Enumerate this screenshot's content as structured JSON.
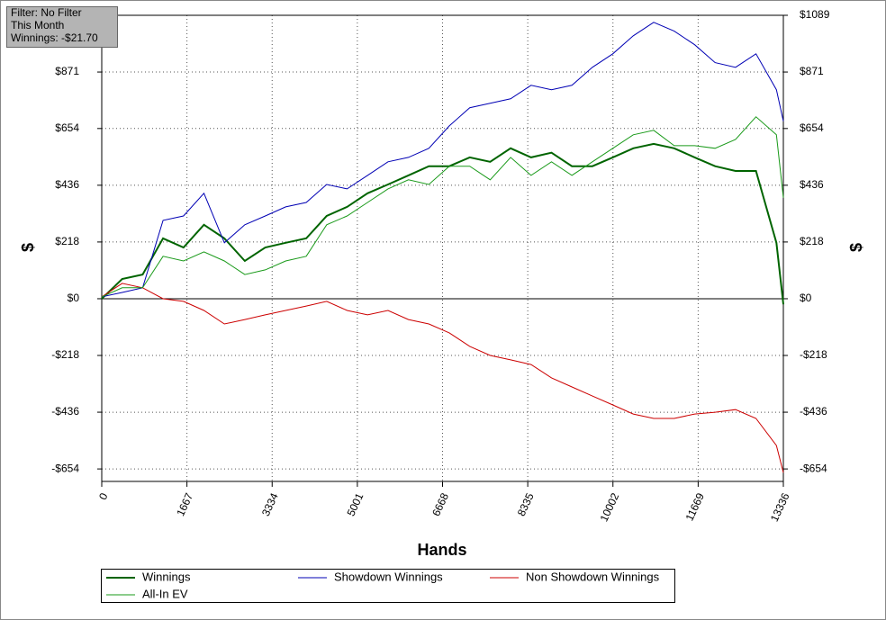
{
  "chart_data": {
    "type": "line",
    "annotations": [
      "Filter: No Filter",
      "This Month",
      "Winnings: -$21.70"
    ],
    "x_label": "Hands",
    "y_label": "$",
    "y2_label": "$",
    "x": [
      0,
      400,
      800,
      1200,
      1600,
      2000,
      2400,
      2800,
      3200,
      3600,
      4000,
      4400,
      4800,
      5200,
      5600,
      6000,
      6400,
      6800,
      7200,
      7600,
      8000,
      8400,
      8800,
      9200,
      9600,
      10000,
      10400,
      10800,
      11200,
      11600,
      12000,
      12400,
      12800,
      13200,
      13336
    ],
    "series": [
      {
        "name": "Winnings",
        "color": "#006400",
        "width": 2,
        "values": [
          0,
          76,
          93,
          232,
          197,
          284,
          232,
          145,
          197,
          215,
          232,
          318,
          353,
          405,
          439,
          474,
          509,
          509,
          543,
          526,
          578,
          543,
          561,
          509,
          509,
          543,
          578,
          595,
          578,
          543,
          509,
          491,
          491,
          215,
          -21.7
        ]
      },
      {
        "name": "Showdown Winnings",
        "color": "#0000b4",
        "width": 1,
        "values": [
          7,
          24,
          42,
          301,
          318,
          405,
          215,
          284,
          318,
          353,
          370,
          439,
          422,
          474,
          526,
          543,
          578,
          664,
          734,
          751,
          768,
          820,
          803,
          820,
          889,
          941,
          1010,
          1062,
          1028,
          976,
          907,
          889,
          941,
          803,
          682
        ]
      },
      {
        "name": "Non Showdown Winnings",
        "color": "#cc0000",
        "width": 1,
        "values": [
          7,
          59,
          42,
          0,
          -10,
          -45,
          -97,
          -80,
          -62,
          -45,
          -28,
          -10,
          -45,
          -62,
          -45,
          -80,
          -97,
          -131,
          -183,
          -218,
          -235,
          -253,
          -304,
          -339,
          -374,
          -408,
          -443,
          -460,
          -460,
          -443,
          -436,
          -426,
          -460,
          -564,
          -668
        ]
      },
      {
        "name": "All-In EV",
        "color": "#1a9a1a",
        "width": 1,
        "values": [
          7,
          42,
          42,
          163,
          145,
          180,
          145,
          93,
          111,
          145,
          163,
          284,
          318,
          370,
          422,
          457,
          439,
          509,
          509,
          457,
          543,
          474,
          526,
          474,
          526,
          578,
          630,
          647,
          588,
          588,
          578,
          612,
          699,
          630,
          388
        ]
      }
    ],
    "xlim": [
      0,
      13336
    ],
    "xticks": [
      0,
      1667,
      3334,
      5001,
      6668,
      8335,
      10002,
      11669,
      13336
    ],
    "ylim": [
      -702,
      1089
    ],
    "yticks": [
      {
        "value": -654,
        "label": "-$654"
      },
      {
        "value": -436,
        "label": "-$436"
      },
      {
        "value": -218,
        "label": "-$218"
      },
      {
        "value": 0,
        "label": "$0"
      },
      {
        "value": 218,
        "label": "$218"
      },
      {
        "value": 436,
        "label": "$436"
      },
      {
        "value": 654,
        "label": "$654"
      },
      {
        "value": 871,
        "label": "$871"
      },
      {
        "value": 1089,
        "label": "$1089"
      }
    ],
    "y2lim": [
      -702,
      1089
    ],
    "y2ticks": [
      {
        "value": -654,
        "label": "-$654"
      },
      {
        "value": -436,
        "label": "-$436"
      },
      {
        "value": -218,
        "label": "-$218"
      },
      {
        "value": 0,
        "label": "$0"
      },
      {
        "value": 218,
        "label": "$218"
      },
      {
        "value": 436,
        "label": "$436"
      },
      {
        "value": 654,
        "label": "$654"
      },
      {
        "value": 871,
        "label": "$871"
      },
      {
        "value": 1089,
        "label": "$1089"
      }
    ],
    "grid": true
  }
}
